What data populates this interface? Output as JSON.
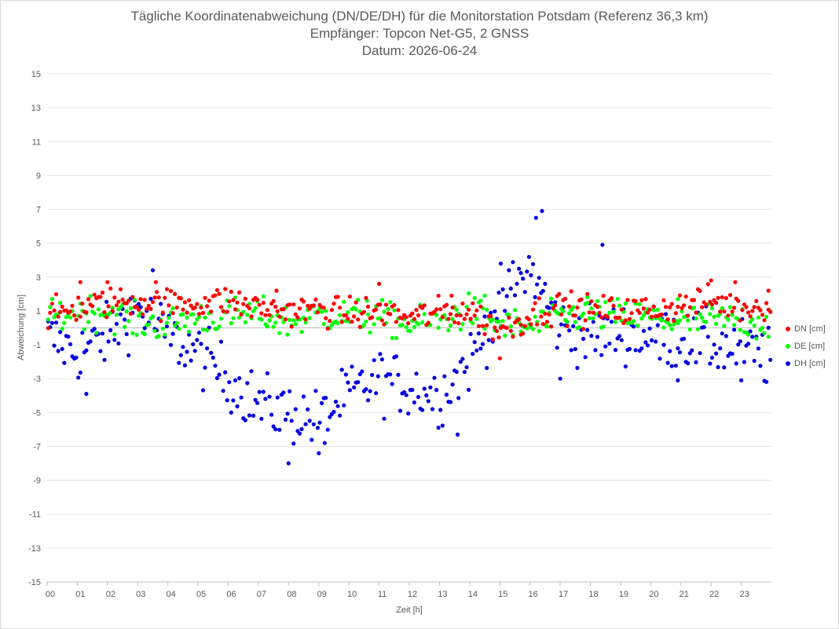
{
  "chart_data": {
    "type": "scatter",
    "title": "Tägliche Koordinatenabweichung (DN/DE/DH) für die Monitorstation Potsdam (Referenz 36,3 km)",
    "subtitle_1": "Empfänger: Topcon Net-G5, 2 GNSS",
    "subtitle_2": "Datum: 2026-06-24",
    "xlabel": "Zeit [h]",
    "ylabel": "Abweichung [cm]",
    "xlim": [
      0,
      24
    ],
    "ylim": [
      -15,
      15
    ],
    "x_ticks": [
      "00",
      "01",
      "02",
      "03",
      "04",
      "05",
      "06",
      "07",
      "08",
      "09",
      "10",
      "11",
      "12",
      "13",
      "14",
      "15",
      "16",
      "17",
      "18",
      "19",
      "20",
      "21",
      "22",
      "23"
    ],
    "y_ticks": [
      "15",
      "13",
      "11",
      "9",
      "7",
      "5",
      "3",
      "1",
      "-1",
      "-3",
      "-5",
      "-7",
      "-9",
      "-11",
      "-13",
      "-15"
    ],
    "grid": true,
    "legend_position": "right",
    "series": [
      {
        "name": "DN [cm]",
        "color": "#ff0000",
        "profile": [
          [
            0,
            0.7
          ],
          [
            1,
            1.2
          ],
          [
            2,
            1.5
          ],
          [
            3,
            1.6
          ],
          [
            4,
            1.4
          ],
          [
            5,
            1.5
          ],
          [
            6,
            1.6
          ],
          [
            7,
            1.2
          ],
          [
            8,
            1.0
          ],
          [
            9,
            1.1
          ],
          [
            10,
            0.8
          ],
          [
            11,
            1.0
          ],
          [
            12,
            0.6
          ],
          [
            13,
            0.9
          ],
          [
            14,
            1.0
          ],
          [
            15,
            -0.2
          ],
          [
            16,
            0.8
          ],
          [
            17,
            1.3
          ],
          [
            18,
            1.0
          ],
          [
            19,
            1.0
          ],
          [
            20,
            1.1
          ],
          [
            21,
            1.3
          ],
          [
            22,
            1.6
          ],
          [
            23,
            1.2
          ],
          [
            24,
            1.4
          ]
        ],
        "scatter": 0.45,
        "outliers": [
          [
            1.1,
            2.7
          ],
          [
            2.0,
            2.7
          ],
          [
            3.6,
            2.7
          ],
          [
            7.6,
            2.2
          ],
          [
            11.0,
            2.6
          ],
          [
            13.4,
            1.9
          ],
          [
            15.0,
            -1.8
          ],
          [
            15.7,
            -0.4
          ],
          [
            22.0,
            2.8
          ],
          [
            22.8,
            2.7
          ],
          [
            23.9,
            2.2
          ]
        ]
      },
      {
        "name": "DE [cm]",
        "color": "#00ff00",
        "profile": [
          [
            0,
            0.6
          ],
          [
            1,
            0.9
          ],
          [
            2,
            1.0
          ],
          [
            3,
            0.3
          ],
          [
            4,
            0.2
          ],
          [
            5,
            0.6
          ],
          [
            6,
            0.7
          ],
          [
            7,
            0.8
          ],
          [
            8,
            0.3
          ],
          [
            9,
            0.8
          ],
          [
            10,
            0.7
          ],
          [
            11,
            0.6
          ],
          [
            12,
            0.2
          ],
          [
            13,
            0.4
          ],
          [
            14,
            1.0
          ],
          [
            15,
            0.2
          ],
          [
            16,
            0.0
          ],
          [
            17,
            0.7
          ],
          [
            18,
            0.8
          ],
          [
            19,
            0.7
          ],
          [
            20,
            0.6
          ],
          [
            21,
            0.3
          ],
          [
            22,
            0.5
          ],
          [
            23,
            0.4
          ],
          [
            24,
            0.3
          ]
        ],
        "scatter": 0.5,
        "outliers": [
          [
            10.6,
            1.6
          ],
          [
            14.5,
            1.9
          ],
          [
            17.9,
            1.8
          ],
          [
            20.9,
            1.7
          ]
        ]
      },
      {
        "name": "DH [cm]",
        "color": "#0000e0",
        "profile": [
          [
            0,
            -0.5
          ],
          [
            1,
            -1.5
          ],
          [
            2,
            -0.5
          ],
          [
            3,
            1.3
          ],
          [
            4,
            -0.5
          ],
          [
            5,
            -1.5
          ],
          [
            6,
            -3.0
          ],
          [
            7,
            -4.5
          ],
          [
            8,
            -5.0
          ],
          [
            9,
            -5.5
          ],
          [
            10,
            -4.0
          ],
          [
            11,
            -3.0
          ],
          [
            12,
            -3.5
          ],
          [
            13,
            -4.0
          ],
          [
            14,
            -2.0
          ],
          [
            15,
            1.5
          ],
          [
            16,
            3.5
          ],
          [
            17,
            0.0
          ],
          [
            18,
            -0.5
          ],
          [
            19,
            -0.3
          ],
          [
            20,
            -0.5
          ],
          [
            21,
            -0.7
          ],
          [
            22,
            -1.0
          ],
          [
            23,
            -1.3
          ],
          [
            24,
            -1.8
          ]
        ],
        "scatter": 0.9,
        "outliers": [
          [
            3.5,
            3.4
          ],
          [
            8.0,
            -8.0
          ],
          [
            9.0,
            -7.4
          ],
          [
            9.2,
            -6.8
          ],
          [
            13.6,
            -6.3
          ],
          [
            16.2,
            6.5
          ],
          [
            16.4,
            6.9
          ],
          [
            18.4,
            4.9
          ],
          [
            1.3,
            -3.9
          ],
          [
            17.0,
            -3.0
          ],
          [
            20.9,
            -3.1
          ],
          [
            23.0,
            -3.1
          ]
        ]
      }
    ],
    "point_count_per_series": 360
  }
}
